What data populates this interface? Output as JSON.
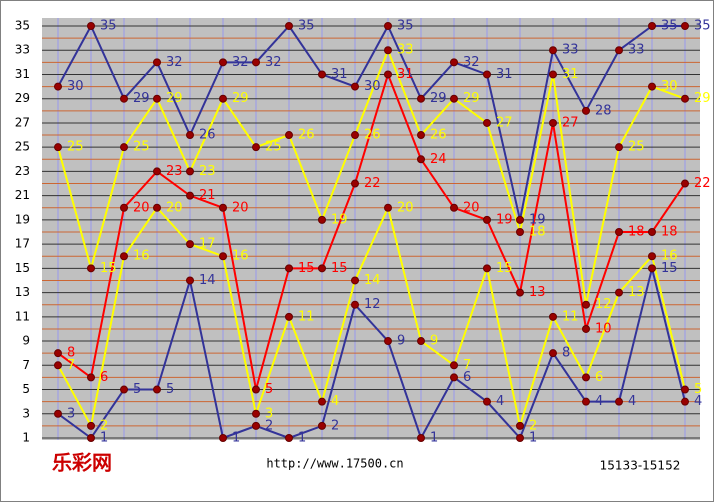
{
  "chart_data": {
    "type": "line",
    "series": [
      {
        "color": "#333399",
        "values": [
          30,
          35,
          29,
          32,
          26,
          32,
          32,
          35,
          31,
          30,
          35,
          29,
          32,
          31,
          19,
          33,
          28,
          33,
          35,
          35
        ]
      },
      {
        "color": "#333399",
        "values": [
          3,
          1,
          5,
          5,
          14,
          1,
          2,
          1,
          2,
          12,
          9,
          1,
          6,
          4,
          1,
          8,
          4,
          4,
          15,
          4
        ]
      },
      {
        "color": "#ff0000",
        "values": [
          8,
          6,
          20,
          23,
          21,
          20,
          5,
          15,
          15,
          22,
          31,
          24,
          20,
          19,
          13,
          27,
          10,
          18,
          18,
          22
        ]
      },
      {
        "color": "#ffff00",
        "values": [
          25,
          15,
          25,
          29,
          23,
          29,
          25,
          26,
          19,
          26,
          33,
          26,
          29,
          27,
          18,
          31,
          12,
          25,
          30,
          29
        ]
      },
      {
        "color": "#ffff00",
        "values": [
          7,
          2,
          16,
          20,
          17,
          16,
          3,
          11,
          4,
          14,
          20,
          9,
          7,
          15,
          2,
          11,
          6,
          13,
          16,
          5
        ]
      }
    ],
    "ylim": [
      1,
      35
    ],
    "yticks": [
      1,
      3,
      5,
      7,
      9,
      11,
      13,
      15,
      17,
      19,
      21,
      23,
      25,
      27,
      29,
      31,
      33,
      35
    ],
    "grid": true,
    "logo": "乐彩网",
    "url": "http://www.17500.cn",
    "period": "15133-15152"
  }
}
